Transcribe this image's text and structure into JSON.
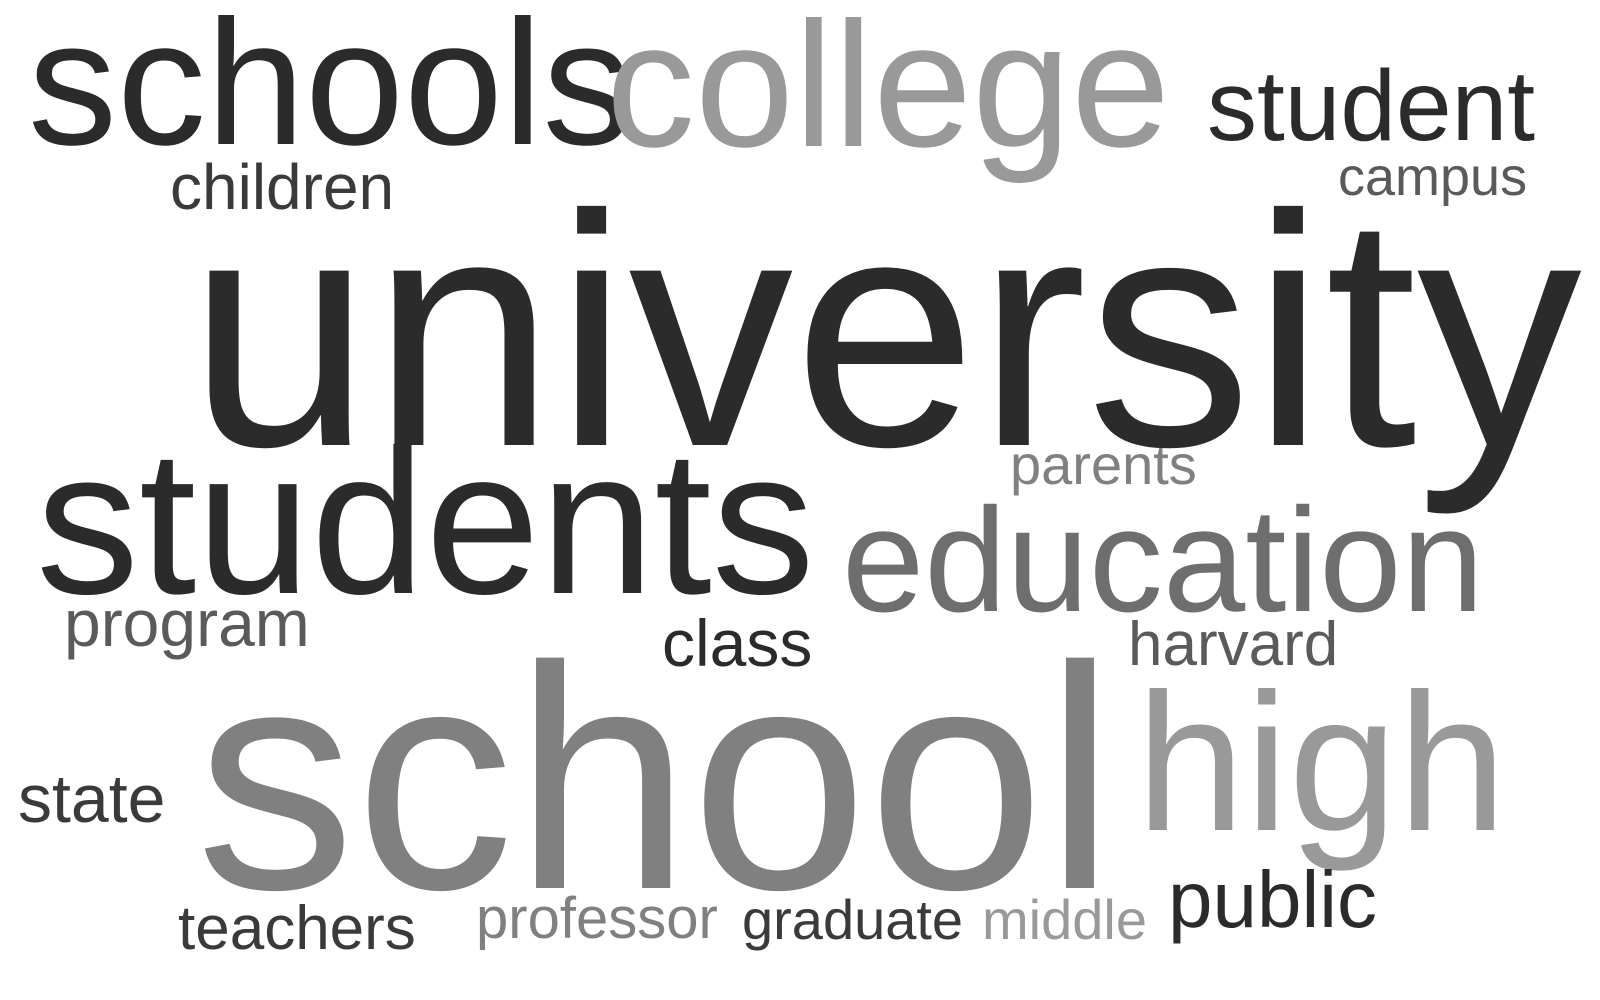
{
  "colors": {
    "dark": "#2b2b2b",
    "medium": "#5a5a5a",
    "mid_gray": "#6e6e6e",
    "gray": "#808080",
    "light": "#999999"
  },
  "words": {
    "schools": "schools",
    "college": "college",
    "student": "student",
    "children": "children",
    "campus": "campus",
    "university": "university",
    "parents": "parents",
    "students": "students",
    "education": "education",
    "program": "program",
    "class": "class",
    "harvard": "harvard",
    "state": "state",
    "school": "school",
    "high": "high",
    "public": "public",
    "teachers": "teachers",
    "professor": "professor",
    "graduate": "graduate",
    "middle": "middle"
  }
}
